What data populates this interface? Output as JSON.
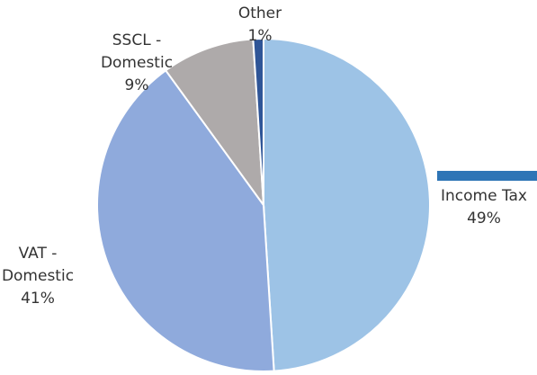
{
  "chart_data": {
    "type": "pie",
    "categories": [
      "Income Tax",
      "VAT - Domestic",
      "SSCL - Domestic",
      "Other"
    ],
    "values": [
      49,
      41,
      9,
      1
    ],
    "value_labels": [
      "49%",
      "41%",
      "9%",
      "1%"
    ],
    "colors": [
      "#9dc3e6",
      "#8faadc",
      "#aeaaaa",
      "#2f5597"
    ]
  }
}
